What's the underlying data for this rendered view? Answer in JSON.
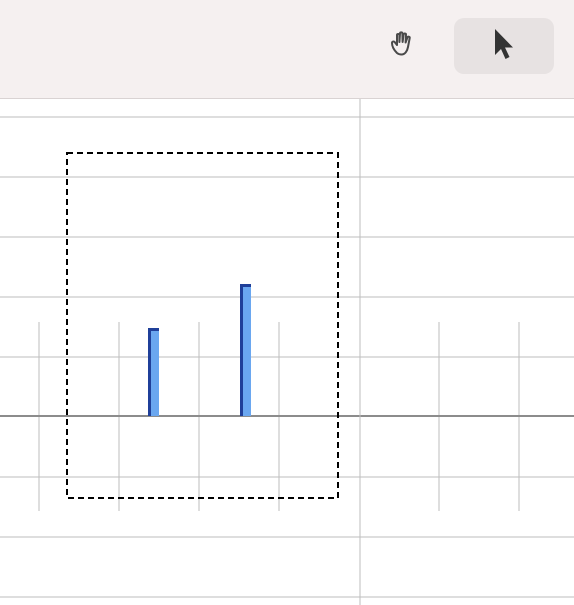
{
  "toolbar": {
    "tools": [
      {
        "name": "hand",
        "icon": "hand-icon",
        "active": false
      },
      {
        "name": "pointer",
        "icon": "pointer-icon",
        "active": true
      }
    ]
  },
  "colors": {
    "toolbar_bg": "#f5f0f0",
    "active_tool_bg": "#e7e2e2",
    "grid_line": "#bdbdbd",
    "axis_line": "#8c8c8c",
    "bar_fill": "#6aa7f0",
    "bar_edge": "#1f3f99",
    "selection_border": "#000000"
  },
  "chart_data": {
    "type": "bar",
    "values": [
      2,
      3
    ]
  }
}
